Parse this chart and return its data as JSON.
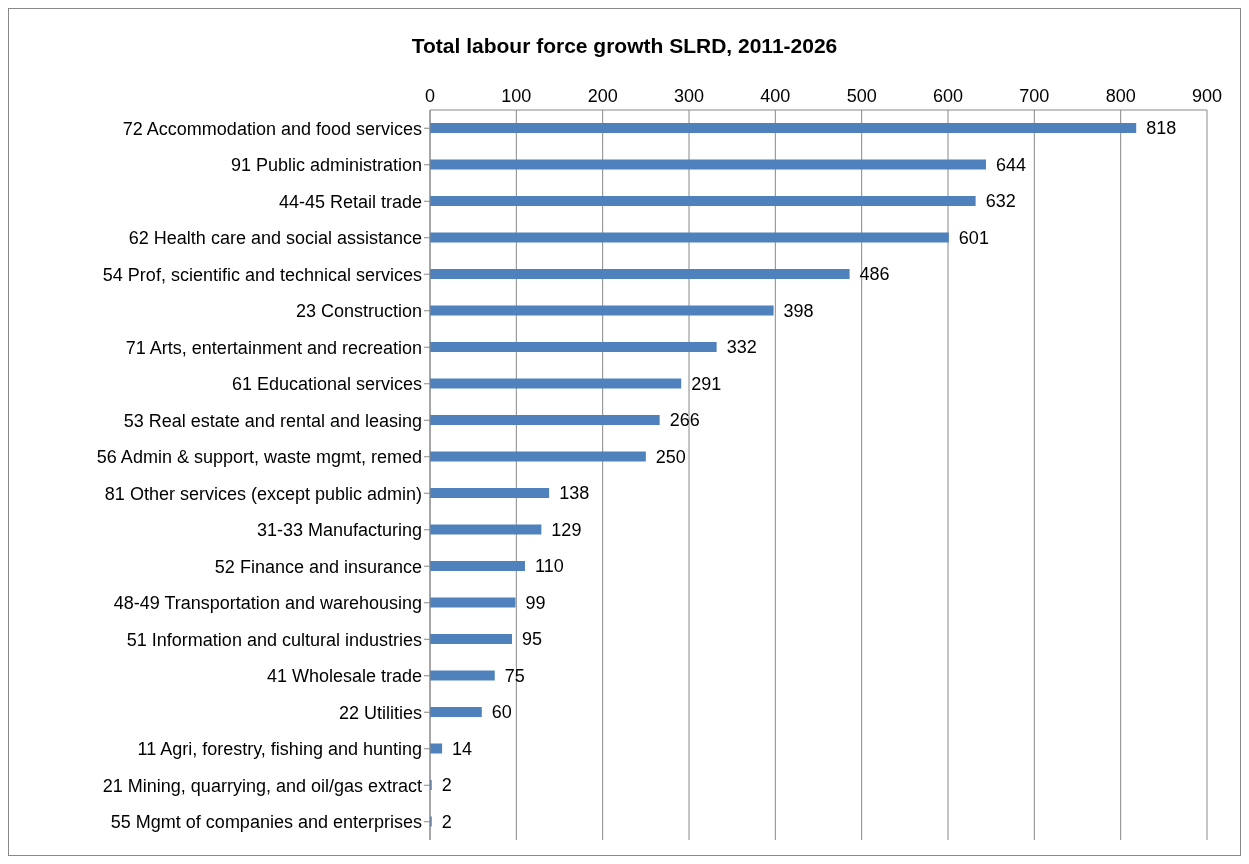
{
  "chart_data": {
    "type": "bar",
    "orientation": "horizontal",
    "title": "Total labour force growth SLRD, 2011-2026",
    "categories": [
      "72 Accommodation and food services",
      "91 Public administration",
      "44-45 Retail trade",
      "62 Health care and social assistance",
      "54 Prof, scientific and technical services",
      "23 Construction",
      "71 Arts, entertainment and recreation",
      "61 Educational services",
      "53 Real estate and rental and leasing",
      "56 Admin & support, waste mgmt, remed",
      "81 Other services (except public admin)",
      "31-33 Manufacturing",
      "52 Finance and insurance",
      "48-49 Transportation and warehousing",
      "51 Information and cultural industries",
      "41 Wholesale trade",
      "22 Utilities",
      "11 Agri, forestry, fishing and hunting",
      "21 Mining, quarrying, and oil/gas extract",
      "55 Mgmt of companies and enterprises"
    ],
    "values": [
      818,
      644,
      632,
      601,
      486,
      398,
      332,
      291,
      266,
      250,
      138,
      129,
      110,
      99,
      95,
      75,
      60,
      14,
      2,
      2
    ],
    "color": "#4f81bd",
    "xlim": [
      0,
      900
    ],
    "xticks": [
      0,
      100,
      200,
      300,
      400,
      500,
      600,
      700,
      800,
      900
    ],
    "grid": "x",
    "data_labels": true,
    "legend": false
  }
}
